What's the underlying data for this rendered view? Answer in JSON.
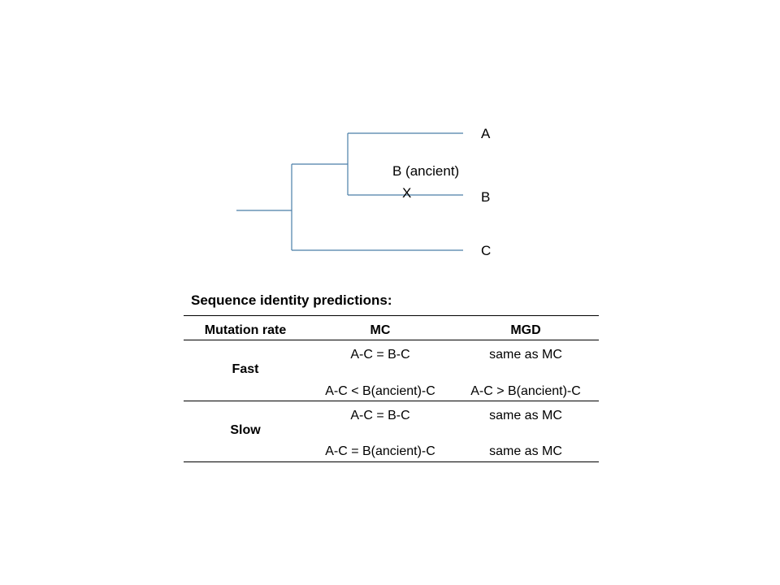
{
  "diagram": {
    "line_color": "#4a7ea8",
    "labels": {
      "a": "A",
      "b_ancient": "B (ancient)",
      "x_mark": "X",
      "b": "B",
      "c": "C"
    }
  },
  "table": {
    "title": "Sequence identity predictions:",
    "headers": {
      "mutation_rate": "Mutation rate",
      "mc": "MC",
      "mgd": "MGD"
    },
    "groups": [
      {
        "label": "Fast",
        "rows": [
          {
            "mc": "A-C = B-C",
            "mgd": "same as MC"
          },
          {
            "mc": "A-C < B(ancient)-C",
            "mgd": "A-C > B(ancient)-C"
          }
        ]
      },
      {
        "label": "Slow",
        "rows": [
          {
            "mc": "A-C = B-C",
            "mgd": "same as MC"
          },
          {
            "mc": "A-C = B(ancient)-C",
            "mgd": "same as MC"
          }
        ]
      }
    ]
  }
}
